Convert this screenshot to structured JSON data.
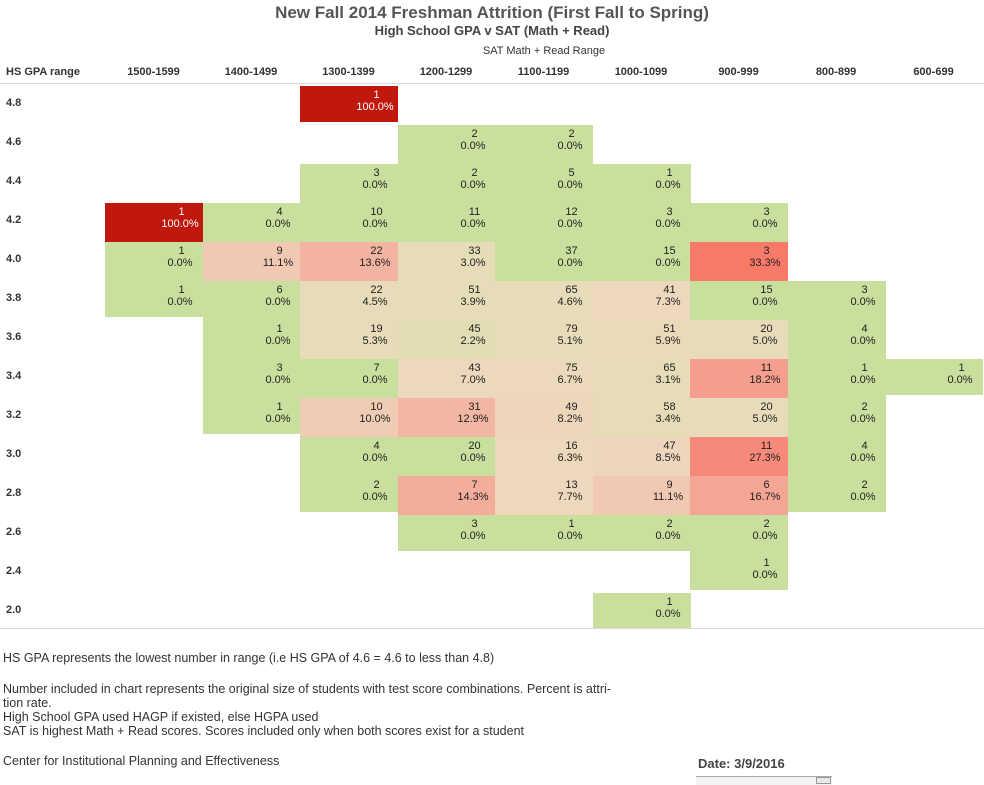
{
  "chart_data": {
    "type": "heatmap",
    "title": "New Fall 2014 Freshman Attrition (First Fall to Spring)",
    "subtitle": "High School GPA v SAT (Math + Read)",
    "xlabel": "SAT Math + Read Range",
    "ylabel": "HS GPA range",
    "x": [
      "1500-1599",
      "1400-1499",
      "1300-1399",
      "1200-1299",
      "1100-1199",
      "1000-1099",
      "900-999",
      "800-899",
      "600-699"
    ],
    "y": [
      "4.8",
      "4.6",
      "4.4",
      "4.2",
      "4.0",
      "3.8",
      "3.6",
      "3.4",
      "3.2",
      "3.0",
      "2.8",
      "2.6",
      "2.4",
      "2.0"
    ],
    "cells": [
      {
        "gpa": "4.8",
        "sat": "1300-1399",
        "count": "1",
        "rate": "100.0%",
        "color": "#c0180d"
      },
      {
        "gpa": "4.6",
        "sat": "1200-1299",
        "count": "2",
        "rate": "0.0%",
        "color": "#c9df9e"
      },
      {
        "gpa": "4.6",
        "sat": "1100-1199",
        "count": "2",
        "rate": "0.0%",
        "color": "#c9df9e"
      },
      {
        "gpa": "4.4",
        "sat": "1300-1399",
        "count": "3",
        "rate": "0.0%",
        "color": "#c9df9e"
      },
      {
        "gpa": "4.4",
        "sat": "1200-1299",
        "count": "2",
        "rate": "0.0%",
        "color": "#c9df9e"
      },
      {
        "gpa": "4.4",
        "sat": "1100-1199",
        "count": "5",
        "rate": "0.0%",
        "color": "#c9df9e"
      },
      {
        "gpa": "4.4",
        "sat": "1000-1099",
        "count": "1",
        "rate": "0.0%",
        "color": "#c9df9e"
      },
      {
        "gpa": "4.2",
        "sat": "1500-1599",
        "count": "1",
        "rate": "100.0%",
        "color": "#c0180d"
      },
      {
        "gpa": "4.2",
        "sat": "1400-1499",
        "count": "4",
        "rate": "0.0%",
        "color": "#c9df9e"
      },
      {
        "gpa": "4.2",
        "sat": "1300-1399",
        "count": "10",
        "rate": "0.0%",
        "color": "#c9df9e"
      },
      {
        "gpa": "4.2",
        "sat": "1200-1299",
        "count": "11",
        "rate": "0.0%",
        "color": "#c9df9e"
      },
      {
        "gpa": "4.2",
        "sat": "1100-1199",
        "count": "12",
        "rate": "0.0%",
        "color": "#c9df9e"
      },
      {
        "gpa": "4.2",
        "sat": "1000-1099",
        "count": "3",
        "rate": "0.0%",
        "color": "#c9df9e"
      },
      {
        "gpa": "4.2",
        "sat": "900-999",
        "count": "3",
        "rate": "0.0%",
        "color": "#c9df9e"
      },
      {
        "gpa": "4.0",
        "sat": "1500-1599",
        "count": "1",
        "rate": "0.0%",
        "color": "#c9df9e"
      },
      {
        "gpa": "4.0",
        "sat": "1400-1499",
        "count": "9",
        "rate": "11.1%",
        "color": "#f1c9b3"
      },
      {
        "gpa": "4.0",
        "sat": "1300-1399",
        "count": "22",
        "rate": "13.6%",
        "color": "#f2b3a0"
      },
      {
        "gpa": "4.0",
        "sat": "1200-1299",
        "count": "33",
        "rate": "3.0%",
        "color": "#e6dcb7"
      },
      {
        "gpa": "4.0",
        "sat": "1100-1199",
        "count": "37",
        "rate": "0.0%",
        "color": "#c9df9e"
      },
      {
        "gpa": "4.0",
        "sat": "1000-1099",
        "count": "15",
        "rate": "0.0%",
        "color": "#c9df9e"
      },
      {
        "gpa": "4.0",
        "sat": "900-999",
        "count": "3",
        "rate": "33.3%",
        "color": "#f77a69"
      },
      {
        "gpa": "3.8",
        "sat": "1500-1599",
        "count": "1",
        "rate": "0.0%",
        "color": "#c9df9e"
      },
      {
        "gpa": "3.8",
        "sat": "1400-1499",
        "count": "6",
        "rate": "0.0%",
        "color": "#c9df9e"
      },
      {
        "gpa": "3.8",
        "sat": "1300-1399",
        "count": "22",
        "rate": "4.5%",
        "color": "#e8dbb9"
      },
      {
        "gpa": "3.8",
        "sat": "1200-1299",
        "count": "51",
        "rate": "3.9%",
        "color": "#e6dcb7"
      },
      {
        "gpa": "3.8",
        "sat": "1100-1199",
        "count": "65",
        "rate": "4.6%",
        "color": "#e8dbb9"
      },
      {
        "gpa": "3.8",
        "sat": "1000-1099",
        "count": "41",
        "rate": "7.3%",
        "color": "#eed8bd"
      },
      {
        "gpa": "3.8",
        "sat": "900-999",
        "count": "15",
        "rate": "0.0%",
        "color": "#c9df9e"
      },
      {
        "gpa": "3.8",
        "sat": "800-899",
        "count": "3",
        "rate": "0.0%",
        "color": "#c9df9e"
      },
      {
        "gpa": "3.6",
        "sat": "1400-1499",
        "count": "1",
        "rate": "0.0%",
        "color": "#c9df9e"
      },
      {
        "gpa": "3.6",
        "sat": "1300-1399",
        "count": "19",
        "rate": "5.3%",
        "color": "#e8dbb9"
      },
      {
        "gpa": "3.6",
        "sat": "1200-1299",
        "count": "45",
        "rate": "2.2%",
        "color": "#e2ddb3"
      },
      {
        "gpa": "3.6",
        "sat": "1100-1199",
        "count": "79",
        "rate": "5.1%",
        "color": "#e8dbb9"
      },
      {
        "gpa": "3.6",
        "sat": "1000-1099",
        "count": "51",
        "rate": "5.9%",
        "color": "#eadab9"
      },
      {
        "gpa": "3.6",
        "sat": "900-999",
        "count": "20",
        "rate": "5.0%",
        "color": "#e8dbb9"
      },
      {
        "gpa": "3.6",
        "sat": "800-899",
        "count": "4",
        "rate": "0.0%",
        "color": "#c9df9e"
      },
      {
        "gpa": "3.4",
        "sat": "1400-1499",
        "count": "3",
        "rate": "0.0%",
        "color": "#c9df9e"
      },
      {
        "gpa": "3.4",
        "sat": "1300-1399",
        "count": "7",
        "rate": "0.0%",
        "color": "#c9df9e"
      },
      {
        "gpa": "3.4",
        "sat": "1200-1299",
        "count": "43",
        "rate": "7.0%",
        "color": "#eed8bd"
      },
      {
        "gpa": "3.4",
        "sat": "1100-1199",
        "count": "75",
        "rate": "6.7%",
        "color": "#ecd9bb"
      },
      {
        "gpa": "3.4",
        "sat": "1000-1099",
        "count": "65",
        "rate": "3.1%",
        "color": "#e6dcb7"
      },
      {
        "gpa": "3.4",
        "sat": "900-999",
        "count": "11",
        "rate": "18.2%",
        "color": "#f59e8e"
      },
      {
        "gpa": "3.4",
        "sat": "800-899",
        "count": "1",
        "rate": "0.0%",
        "color": "#c9df9e"
      },
      {
        "gpa": "3.4",
        "sat": "600-699",
        "count": "1",
        "rate": "0.0%",
        "color": "#c9df9e"
      },
      {
        "gpa": "3.2",
        "sat": "1400-1499",
        "count": "1",
        "rate": "0.0%",
        "color": "#c9df9e"
      },
      {
        "gpa": "3.2",
        "sat": "1300-1399",
        "count": "10",
        "rate": "10.0%",
        "color": "#f0ccb5"
      },
      {
        "gpa": "3.2",
        "sat": "1200-1299",
        "count": "31",
        "rate": "12.9%",
        "color": "#f2b7a3"
      },
      {
        "gpa": "3.2",
        "sat": "1100-1199",
        "count": "49",
        "rate": "8.2%",
        "color": "#eed6bd"
      },
      {
        "gpa": "3.2",
        "sat": "1000-1099",
        "count": "58",
        "rate": "3.4%",
        "color": "#e6dcb7"
      },
      {
        "gpa": "3.2",
        "sat": "900-999",
        "count": "20",
        "rate": "5.0%",
        "color": "#e8dbb9"
      },
      {
        "gpa": "3.2",
        "sat": "800-899",
        "count": "2",
        "rate": "0.0%",
        "color": "#c9df9e"
      },
      {
        "gpa": "3.0",
        "sat": "1300-1399",
        "count": "4",
        "rate": "0.0%",
        "color": "#c9df9e"
      },
      {
        "gpa": "3.0",
        "sat": "1200-1299",
        "count": "20",
        "rate": "0.0%",
        "color": "#c9df9e"
      },
      {
        "gpa": "3.0",
        "sat": "1100-1199",
        "count": "16",
        "rate": "6.3%",
        "color": "#ecd9bb"
      },
      {
        "gpa": "3.0",
        "sat": "1000-1099",
        "count": "47",
        "rate": "8.5%",
        "color": "#eed5bd"
      },
      {
        "gpa": "3.0",
        "sat": "900-999",
        "count": "11",
        "rate": "27.3%",
        "color": "#f7897a"
      },
      {
        "gpa": "3.0",
        "sat": "800-899",
        "count": "4",
        "rate": "0.0%",
        "color": "#c9df9e"
      },
      {
        "gpa": "2.8",
        "sat": "1300-1399",
        "count": "2",
        "rate": "0.0%",
        "color": "#c9df9e"
      },
      {
        "gpa": "2.8",
        "sat": "1200-1299",
        "count": "7",
        "rate": "14.3%",
        "color": "#f3ae9b"
      },
      {
        "gpa": "2.8",
        "sat": "1100-1199",
        "count": "13",
        "rate": "7.7%",
        "color": "#eed8bd"
      },
      {
        "gpa": "2.8",
        "sat": "1000-1099",
        "count": "9",
        "rate": "11.1%",
        "color": "#f1c9b3"
      },
      {
        "gpa": "2.8",
        "sat": "900-999",
        "count": "6",
        "rate": "16.7%",
        "color": "#f4a593"
      },
      {
        "gpa": "2.8",
        "sat": "800-899",
        "count": "2",
        "rate": "0.0%",
        "color": "#c9df9e"
      },
      {
        "gpa": "2.6",
        "sat": "1200-1299",
        "count": "3",
        "rate": "0.0%",
        "color": "#c9df9e"
      },
      {
        "gpa": "2.6",
        "sat": "1100-1199",
        "count": "1",
        "rate": "0.0%",
        "color": "#c9df9e"
      },
      {
        "gpa": "2.6",
        "sat": "1000-1099",
        "count": "2",
        "rate": "0.0%",
        "color": "#c9df9e"
      },
      {
        "gpa": "2.6",
        "sat": "900-999",
        "count": "2",
        "rate": "0.0%",
        "color": "#c9df9e"
      },
      {
        "gpa": "2.4",
        "sat": "900-999",
        "count": "1",
        "rate": "0.0%",
        "color": "#c9df9e"
      },
      {
        "gpa": "2.0",
        "sat": "1000-1099",
        "count": "1",
        "rate": "0.0%",
        "color": "#c9df9e"
      }
    ]
  },
  "notes": {
    "line1": "HS GPA represents the lowest number in range (i.e HS GPA of 4.6 = 4.6 to less than 4.8)",
    "line2a": "Number included in chart represents the original size of students with test score combinations. Percent is attri-",
    "line2b": "tion rate.",
    "line3": "High School GPA used HAGP if existed, else HGPA used",
    "line4": "SAT is highest Math + Read scores. Scores included only when both scores exist for a student",
    "line5": "Center for Institutional Planning and Effectiveness"
  },
  "date_label": "Date: 3/9/2016"
}
